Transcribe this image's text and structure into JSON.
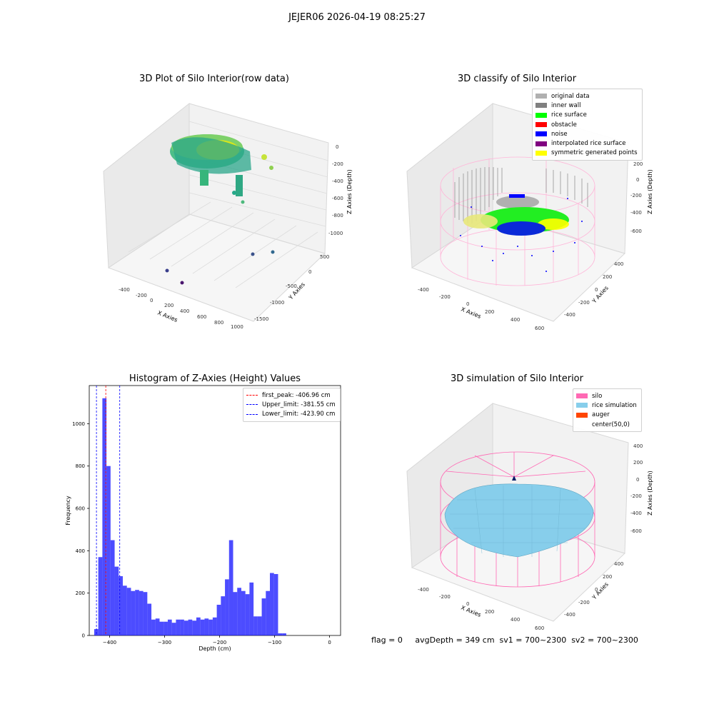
{
  "suptitle": "JEJER06 2026-04-19 08:25:27",
  "panels": {
    "raw": {
      "title": "3D Plot of Silo Interior(row data)",
      "xlabel": "X Axies",
      "ylabel": "Y Axies",
      "zlabel": "Z Axies (Depth)",
      "xticks": [
        "-400",
        "-200",
        "0",
        "200",
        "400",
        "600",
        "800",
        "1000"
      ],
      "yticks": [
        "500",
        "0",
        "-500",
        "-1000",
        "-1500"
      ],
      "zticks": [
        "0",
        "-200",
        "-400",
        "-600",
        "-800",
        "-1000"
      ]
    },
    "classify": {
      "title": "3D classify of Silo Interior",
      "xlabel": "X Axies",
      "ylabel": "Y Axies",
      "zlabel": "Z Axies (Depth)",
      "xticks": [
        "-400",
        "-200",
        "0",
        "200",
        "400",
        "600"
      ],
      "yticks": [
        "400",
        "200",
        "0",
        "-200",
        "-400"
      ],
      "zticks": [
        "200",
        "0",
        "-200",
        "-400",
        "-600"
      ],
      "legend": [
        {
          "label": "original data",
          "color": "#b0b0b0"
        },
        {
          "label": "inner wall",
          "color": "#808080"
        },
        {
          "label": "rice surface",
          "color": "#00ff00"
        },
        {
          "label": "obstacle",
          "color": "#ff0000"
        },
        {
          "label": "noise",
          "color": "#0000ff"
        },
        {
          "label": "interpolated rice surface",
          "color": "#800080"
        },
        {
          "label": "symmetric generated points",
          "color": "#ffff00"
        }
      ]
    },
    "histogram": {
      "title": "Histogram of Z-Axies (Height) Values",
      "xlabel": "Depth (cm)",
      "ylabel": "Frequency"
    },
    "simulation": {
      "title": "3D simulation of Silo Interior",
      "xlabel": "X Axies",
      "ylabel": "Y Axies",
      "zlabel": "Z Axies (Depth)",
      "xticks": [
        "-400",
        "-200",
        "0",
        "200",
        "400",
        "600"
      ],
      "yticks": [
        "400",
        "200",
        "0",
        "-200",
        "-400"
      ],
      "zticks": [
        "400",
        "200",
        "0",
        "-200",
        "-400",
        "-600"
      ],
      "legend": [
        {
          "label": "silo",
          "color": "#ff69b4"
        },
        {
          "label": "rice simulation",
          "color": "#87ceeb"
        },
        {
          "label": "auger",
          "color": "#ff4500"
        },
        {
          "label": "center(50,0)",
          "color": ""
        }
      ]
    }
  },
  "footer": {
    "flag": "flag = 0",
    "avg": "avgDepth = 349 cm  sv1 = 700~2300  sv2 = 700~2300"
  },
  "chart_data": {
    "type": "bar",
    "title": "Histogram of Z-Axies (Height) Values",
    "xlabel": "Depth (cm)",
    "ylabel": "Frequency",
    "xlim": [
      -437,
      20
    ],
    "ylim": [
      0,
      1180
    ],
    "xticks": [
      -400,
      -300,
      -200,
      -100,
      0
    ],
    "yticks": [
      0,
      200,
      400,
      600,
      800,
      1000
    ],
    "bin_start": -428,
    "bin_width": 7.43,
    "values": [
      30,
      370,
      1120,
      800,
      450,
      325,
      280,
      235,
      225,
      210,
      215,
      210,
      205,
      150,
      75,
      80,
      65,
      65,
      75,
      60,
      75,
      75,
      70,
      75,
      70,
      85,
      75,
      80,
      75,
      85,
      145,
      185,
      265,
      450,
      205,
      225,
      210,
      195,
      250,
      90,
      90,
      175,
      210,
      295,
      290,
      10,
      10
    ],
    "bar_color": "#0000ff",
    "vlines": [
      {
        "label": "first_peak: -406.96 cm",
        "x": -406.96,
        "color": "#ff0000"
      },
      {
        "label": "Upper_limit: -381.55 cm",
        "x": -381.55,
        "color": "#0000ff"
      },
      {
        "label": "Lower_limit: -423.90 cm",
        "x": -423.9,
        "color": "#0000ff"
      }
    ],
    "legend_position": "top-right"
  }
}
